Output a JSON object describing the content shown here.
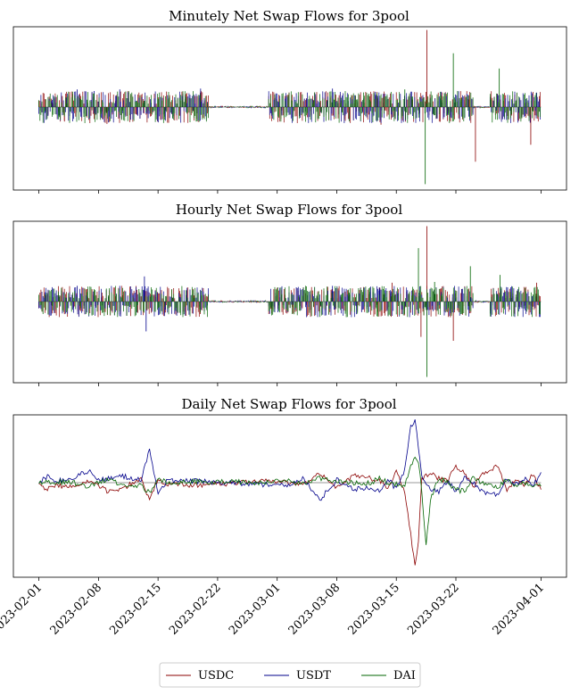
{
  "chart_data": [
    {
      "type": "line",
      "title": "Minutely Net Swap Flows for 3pool",
      "x_range": [
        "2023-02-01",
        "2023-04-01"
      ],
      "ylim": [
        -1,
        1
      ],
      "grid": false,
      "series": [
        {
          "name": "USDC",
          "color": "#8b0000",
          "spikes": [
            [
              45.6,
              0.96
            ],
            [
              51.3,
              -0.68
            ],
            [
              57.8,
              -0.47
            ],
            [
              40.2,
              -0.22
            ],
            [
              3.0,
              -0.18
            ],
            [
              8.0,
              -0.21
            ]
          ]
        },
        {
          "name": "USDT",
          "color": "#00008b",
          "spikes": [
            [
              4.5,
              0.22
            ],
            [
              6.5,
              0.2
            ],
            [
              9.5,
              0.22
            ],
            [
              19.0,
              0.23
            ],
            [
              34.5,
              0.23
            ],
            [
              39.5,
              0.19
            ],
            [
              58.5,
              0.18
            ]
          ]
        },
        {
          "name": "DAI",
          "color": "#006400",
          "spikes": [
            [
              45.4,
              -0.96
            ],
            [
              48.7,
              0.67
            ],
            [
              54.1,
              0.48
            ],
            [
              43.0,
              0.22
            ],
            [
              12.5,
              0.08
            ]
          ]
        }
      ]
    },
    {
      "type": "line",
      "title": "Hourly Net Swap Flows for 3pool",
      "x_range": [
        "2023-02-01",
        "2023-04-01"
      ],
      "ylim": [
        -1,
        1
      ],
      "grid": false,
      "series": [
        {
          "name": "USDC",
          "color": "#8b0000",
          "spikes": [
            [
              45.6,
              0.96
            ],
            [
              44.9,
              -0.45
            ],
            [
              48.7,
              -0.5
            ],
            [
              41.5,
              0.24
            ],
            [
              58.5,
              0.24
            ],
            [
              3.0,
              -0.16
            ]
          ]
        },
        {
          "name": "USDT",
          "color": "#00008b",
          "spikes": [
            [
              12.6,
              -0.38
            ],
            [
              12.4,
              0.32
            ],
            [
              4.5,
              0.2
            ],
            [
              9.5,
              0.2
            ],
            [
              34.5,
              0.2
            ],
            [
              40.0,
              0.18
            ]
          ]
        },
        {
          "name": "DAI",
          "color": "#006400",
          "spikes": [
            [
              45.6,
              -0.96
            ],
            [
              44.6,
              0.68
            ],
            [
              50.7,
              0.45
            ],
            [
              54.2,
              0.34
            ],
            [
              46.5,
              0.25
            ]
          ]
        }
      ]
    },
    {
      "type": "line",
      "title": "Daily Net Swap Flows for 3pool",
      "x_range": [
        "2023-02-01",
        "2023-04-01"
      ],
      "ylim": [
        -1,
        1
      ],
      "grid": false,
      "series": [
        {
          "name": "USDC",
          "color": "#8b0000",
          "points": [
            [
              0,
              0.0
            ],
            [
              1,
              -0.08
            ],
            [
              2,
              -0.03
            ],
            [
              4,
              -0.05
            ],
            [
              6,
              0.02
            ],
            [
              8,
              -0.1
            ],
            [
              10,
              -0.06
            ],
            [
              12,
              0.05
            ],
            [
              13,
              -0.2
            ],
            [
              14,
              0.05
            ],
            [
              15,
              -0.02
            ],
            [
              18,
              -0.03
            ],
            [
              22,
              -0.01
            ],
            [
              26,
              0.02
            ],
            [
              29,
              0.01
            ],
            [
              31,
              -0.03
            ],
            [
              33,
              0.12
            ],
            [
              35,
              -0.06
            ],
            [
              37,
              0.08
            ],
            [
              39,
              0.05
            ],
            [
              40,
              0.03
            ],
            [
              41,
              -0.05
            ],
            [
              42,
              0.12
            ],
            [
              43,
              -0.1
            ],
            [
              43.7,
              -0.6
            ],
            [
              44.2,
              -0.98
            ],
            [
              44.6,
              -0.7
            ],
            [
              45.0,
              0.05
            ],
            [
              46,
              0.1
            ],
            [
              47,
              0.05
            ],
            [
              48,
              0.02
            ],
            [
              49,
              0.2
            ],
            [
              50,
              0.1
            ],
            [
              51,
              -0.05
            ],
            [
              52,
              0.1
            ],
            [
              54,
              0.2
            ],
            [
              55,
              -0.1
            ],
            [
              56,
              0.05
            ],
            [
              57,
              -0.04
            ],
            [
              58,
              0.1
            ],
            [
              59,
              -0.08
            ]
          ]
        },
        {
          "name": "USDT",
          "color": "#00008b",
          "points": [
            [
              0,
              0.0
            ],
            [
              1,
              0.07
            ],
            [
              2,
              0.02
            ],
            [
              4,
              0.05
            ],
            [
              6,
              0.15
            ],
            [
              7,
              0.02
            ],
            [
              8,
              0.05
            ],
            [
              10,
              0.07
            ],
            [
              12,
              0.03
            ],
            [
              13,
              0.38
            ],
            [
              14,
              -0.12
            ],
            [
              15,
              0.02
            ],
            [
              18,
              0.02
            ],
            [
              22,
              0.0
            ],
            [
              26,
              -0.02
            ],
            [
              29,
              -0.03
            ],
            [
              31,
              0.05
            ],
            [
              33,
              -0.2
            ],
            [
              35,
              0.03
            ],
            [
              37,
              -0.08
            ],
            [
              39,
              -0.05
            ],
            [
              40,
              -0.1
            ],
            [
              41,
              0.05
            ],
            [
              42,
              -0.08
            ],
            [
              43,
              0.15
            ],
            [
              43.7,
              0.65
            ],
            [
              44.2,
              0.72
            ],
            [
              44.6,
              0.4
            ],
            [
              45.0,
              0.05
            ],
            [
              46,
              -0.08
            ],
            [
              47,
              -0.1
            ],
            [
              48,
              0.02
            ],
            [
              49,
              -0.1
            ],
            [
              50,
              0.05
            ],
            [
              51,
              0.0
            ],
            [
              52,
              -0.1
            ],
            [
              54,
              -0.15
            ],
            [
              55,
              0.05
            ],
            [
              56,
              -0.02
            ],
            [
              57,
              0.05
            ],
            [
              58,
              -0.05
            ],
            [
              59,
              0.12
            ]
          ]
        },
        {
          "name": "DAI",
          "color": "#006400",
          "points": [
            [
              0,
              0.0
            ],
            [
              1,
              0.01
            ],
            [
              2,
              0.01
            ],
            [
              4,
              0.0
            ],
            [
              6,
              -0.05
            ],
            [
              7,
              0.0
            ],
            [
              8,
              0.03
            ],
            [
              10,
              -0.02
            ],
            [
              12,
              -0.04
            ],
            [
              13,
              -0.12
            ],
            [
              14,
              0.05
            ],
            [
              15,
              0.0
            ],
            [
              18,
              0.01
            ],
            [
              22,
              0.01
            ],
            [
              26,
              0.0
            ],
            [
              29,
              0.02
            ],
            [
              31,
              -0.02
            ],
            [
              33,
              0.05
            ],
            [
              35,
              0.02
            ],
            [
              37,
              0.0
            ],
            [
              39,
              0.0
            ],
            [
              40,
              0.05
            ],
            [
              41,
              0.0
            ],
            [
              42,
              -0.02
            ],
            [
              43,
              -0.05
            ],
            [
              43.7,
              0.2
            ],
            [
              44.2,
              0.3
            ],
            [
              44.6,
              0.25
            ],
            [
              45.0,
              -0.1
            ],
            [
              45.5,
              -0.75
            ],
            [
              46,
              -0.2
            ],
            [
              47,
              0.05
            ],
            [
              48,
              0.0
            ],
            [
              49,
              -0.08
            ],
            [
              50,
              -0.1
            ],
            [
              51,
              0.05
            ],
            [
              52,
              0.0
            ],
            [
              54,
              -0.05
            ],
            [
              55,
              0.05
            ],
            [
              56,
              -0.03
            ],
            [
              57,
              -0.01
            ],
            [
              58,
              -0.05
            ],
            [
              59,
              -0.04
            ]
          ]
        }
      ]
    }
  ],
  "x_ticks": [
    {
      "day": 0,
      "label": "2023-02-01"
    },
    {
      "day": 7,
      "label": "2023-02-08"
    },
    {
      "day": 14,
      "label": "2023-02-15"
    },
    {
      "day": 21,
      "label": "2023-02-22"
    },
    {
      "day": 28,
      "label": "2023-03-01"
    },
    {
      "day": 35,
      "label": "2023-03-08"
    },
    {
      "day": 42,
      "label": "2023-03-15"
    },
    {
      "day": 49,
      "label": "2023-03-22"
    },
    {
      "day": 59,
      "label": "2023-04-01"
    }
  ],
  "x_domain": [
    -3,
    62
  ],
  "legend": {
    "placement": "bottom-center",
    "entries": [
      {
        "label": "USDC",
        "color": "#8b0000"
      },
      {
        "label": "USDT",
        "color": "#00008b"
      },
      {
        "label": "DAI",
        "color": "#006400"
      }
    ]
  }
}
